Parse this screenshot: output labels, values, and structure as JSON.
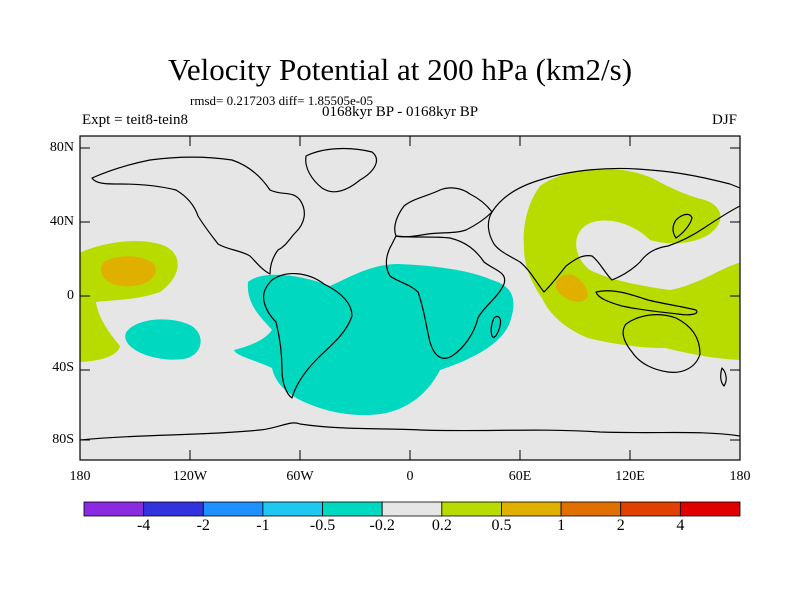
{
  "title": "Velocity Potential at 200 hPa (km2/s)",
  "stats_line": "rmsd= 0.217203 diff= 1.85505e-05",
  "period_label": "0168kyr BP - 0168kyr BP",
  "experiment_label": "Expt = teit8-tein8",
  "season_label": "DJF",
  "map": {
    "projection": "cylindrical equidistant",
    "lat_range": [
      -90,
      90
    ],
    "lon_range": [
      -180,
      180
    ],
    "lat_ticks": [
      "80N",
      "40N",
      "0",
      "40S",
      "80S"
    ],
    "lon_ticks": [
      "180",
      "120W",
      "60W",
      "0",
      "60E",
      "120E",
      "180"
    ]
  },
  "colorbar": {
    "colors": [
      "#8a2be2",
      "#3333dd",
      "#1e90ff",
      "#1ec8f0",
      "#00d8c0",
      "#e6e6e6",
      "#b8dc00",
      "#e0b000",
      "#e07000",
      "#e04000",
      "#e00000"
    ],
    "labels": [
      "-4",
      "-2",
      "-1",
      "-0.5",
      "-0.2",
      "0.2",
      "0.5",
      "1",
      "2",
      "4"
    ]
  },
  "colors": {
    "ocean_background": "#e6e6e6",
    "negative_region": "#00d8c0",
    "positive_region": "#b8dc00",
    "strong_positive_region": "#e0b000"
  }
}
